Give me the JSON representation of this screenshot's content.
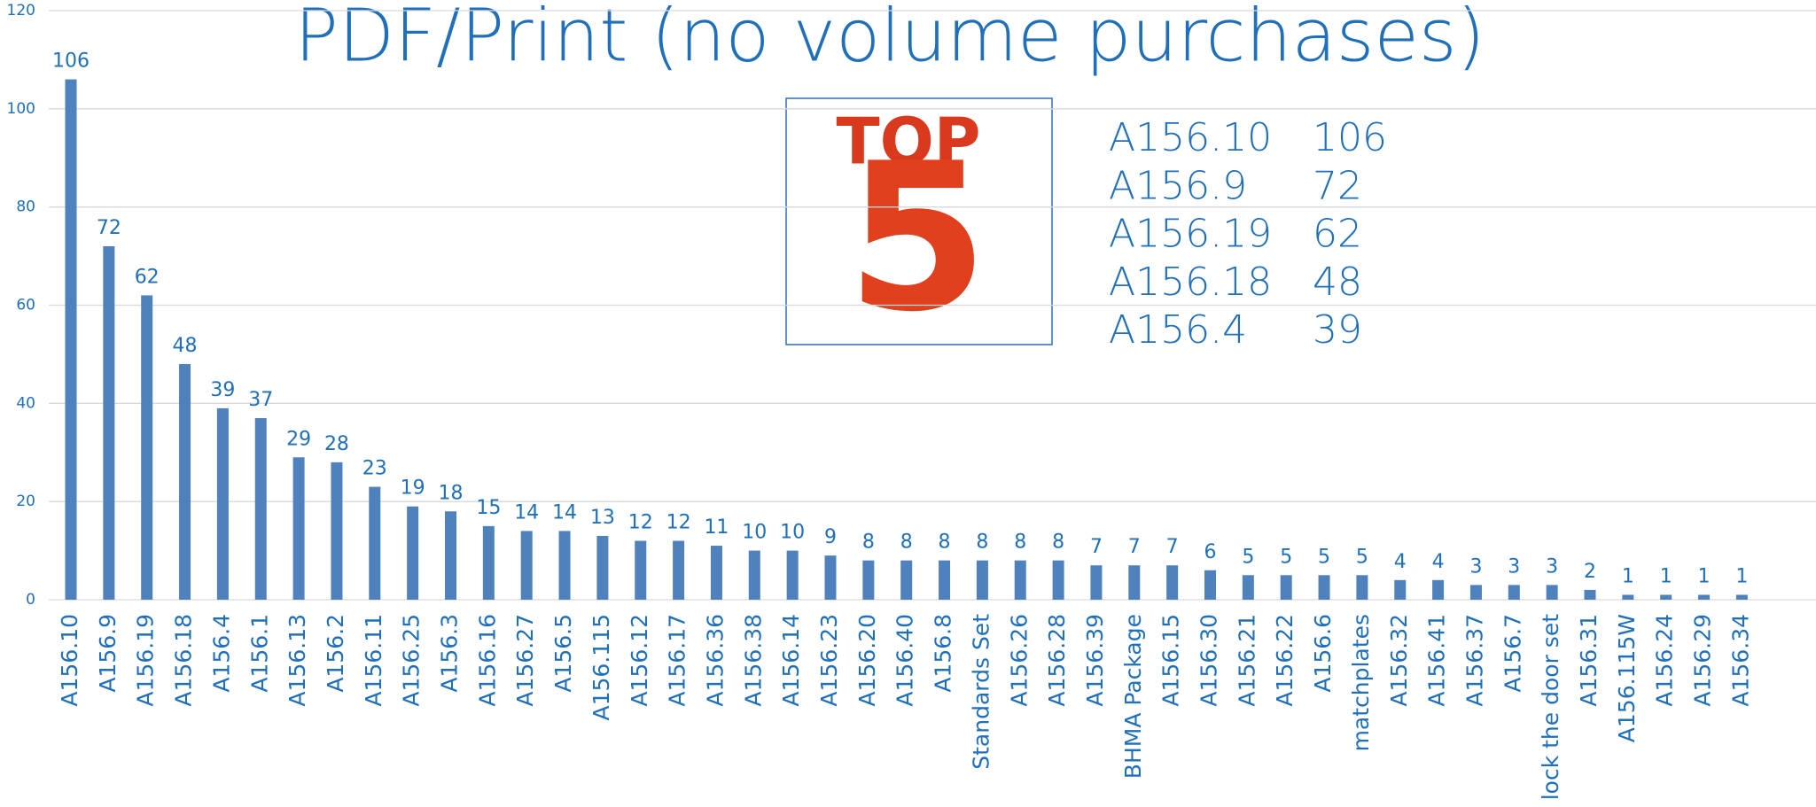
{
  "chart_data": {
    "type": "bar",
    "title": "PDF/Print (no volume purchases)",
    "categories": [
      "A156.10",
      "A156.9",
      "A156.19",
      "A156.18",
      "A156.4",
      "A156.1",
      "A156.13",
      "A156.2",
      "A156.11",
      "A156.25",
      "A156.3",
      "A156.16",
      "A156.27",
      "A156.5",
      "A156.115",
      "A156.12",
      "A156.17",
      "A156.36",
      "A156.38",
      "A156.14",
      "A156.23",
      "A156.20",
      "A156.40",
      "A156.8",
      "Standards Set",
      "A156.26",
      "A156.28",
      "A156.39",
      "BHMA Package",
      "A156.15",
      "A156.30",
      "A156.21",
      "A156.22",
      "A156.6",
      "matchplates",
      "A156.32",
      "A156.41",
      "A156.37",
      "A156.7",
      "lock the door set",
      "A156.31",
      "A156.115W",
      "A156.24",
      "A156.29",
      "A156.34"
    ],
    "values": [
      106,
      72,
      62,
      48,
      39,
      37,
      29,
      28,
      23,
      19,
      18,
      15,
      14,
      14,
      13,
      12,
      12,
      11,
      10,
      10,
      9,
      8,
      8,
      8,
      8,
      8,
      8,
      7,
      7,
      7,
      6,
      5,
      5,
      5,
      5,
      4,
      4,
      3,
      3,
      3,
      2,
      1,
      1,
      1,
      1
    ],
    "color": "#4f81bd",
    "ylim": [
      0,
      120
    ],
    "yticks": [
      0,
      20,
      40,
      60,
      80,
      100,
      120
    ],
    "grid": true
  },
  "top_list": {
    "badge_word": "TOP",
    "badge_number": "5",
    "items": [
      {
        "name": "A156.10",
        "value": "106"
      },
      {
        "name": "A156.9",
        "value": "72"
      },
      {
        "name": "A156.19",
        "value": "62"
      },
      {
        "name": "A156.18",
        "value": "48"
      },
      {
        "name": "A156.4",
        "value": "39"
      }
    ]
  }
}
